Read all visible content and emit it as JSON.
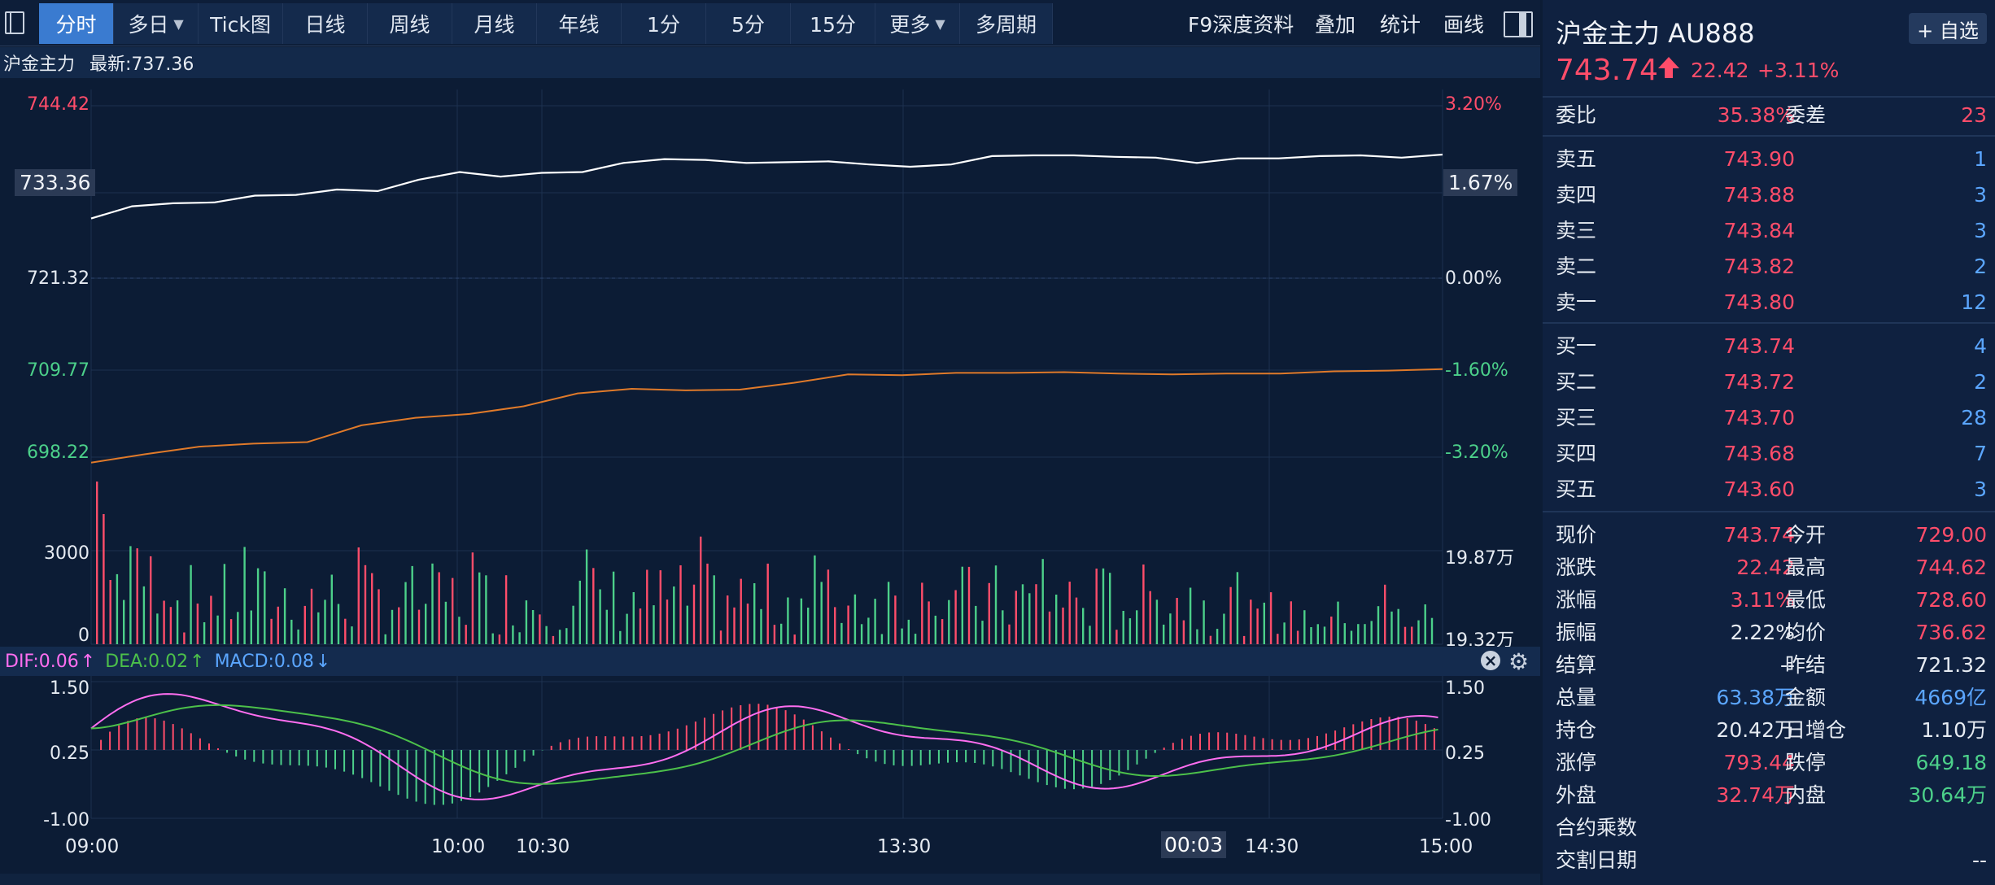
{
  "toolbar": {
    "tabs": [
      {
        "label": "分时",
        "active": true
      },
      {
        "label": "多日",
        "dropdown": true
      },
      {
        "label": "Tick图"
      },
      {
        "label": "日线"
      },
      {
        "label": "周线"
      },
      {
        "label": "月线"
      },
      {
        "label": "年线"
      },
      {
        "label": "1分"
      },
      {
        "label": "5分"
      },
      {
        "label": "15分"
      },
      {
        "label": "更多",
        "dropdown": true
      },
      {
        "label": "多周期"
      }
    ],
    "right": [
      "F9深度资料",
      "叠加",
      "统计",
      "画线"
    ],
    "dropdown_glyph": "▼"
  },
  "info": {
    "name": "沪金主力",
    "latest": "最新:737.36"
  },
  "chart": {
    "left_labels": [
      "744.42",
      "733.36",
      "721.32",
      "709.77",
      "698.22"
    ],
    "right_labels": [
      "3.20%",
      "1.67%",
      "0.00%",
      "-1.60%",
      "-3.20%"
    ],
    "vol_left": [
      "3000",
      "0"
    ],
    "vol_right": [
      "19.87万",
      "19.32万"
    ],
    "macd_left": [
      "1.50",
      "0.25",
      "-1.00"
    ],
    "macd_right": [
      "1.50",
      "0.25",
      "-1.00"
    ],
    "macd_legend": {
      "dif": "DIF:0.06",
      "dif_arrow": "↑",
      "dea": "DEA:0.02",
      "dea_arrow": "↑",
      "macd": "MACD:0.08",
      "macd_arrow": "↓"
    },
    "time_labels": [
      "09:00",
      "10:00",
      "10:30",
      "13:30",
      "14:30",
      "15:00"
    ],
    "cursor_time": "00:03",
    "colors": {
      "up": "#ff4d6a",
      "down": "#4cd08a",
      "price": "#ffffff",
      "avg": "#e07a2a",
      "dif": "#ff6ef0",
      "dea": "#4cc04a",
      "bg": "#0c1c35"
    }
  },
  "chart_data": {
    "type": "line",
    "title": "",
    "xlabel": "",
    "ylabel": "",
    "x_ticks": [
      "09:00",
      "10:00",
      "10:30",
      "13:30",
      "14:30",
      "15:00"
    ],
    "ylim": [
      698.22,
      744.42
    ],
    "series": [
      {
        "values": [
          729.6,
          731.2,
          731.6,
          731.7,
          732.6,
          732.7,
          733.4,
          733.2,
          734.7,
          735.7,
          735.1,
          735.6,
          735.7,
          736.9,
          737.4,
          737.3,
          736.9,
          737.0,
          737.1,
          736.7,
          736.4,
          736.7,
          737.8,
          737.9,
          737.9,
          737.7,
          737.6,
          736.9,
          737.5,
          737.5,
          737.8,
          737.9,
          737.6,
          738.0
        ]
      },
      {
        "values": [
          697.5,
          698.6,
          699.6,
          700.0,
          700.2,
          702.4,
          703.4,
          703.9,
          704.9,
          706.6,
          707.2,
          707.0,
          707.1,
          708.0,
          709.1,
          709.0,
          709.3,
          709.3,
          709.4,
          709.2,
          709.1,
          709.2,
          709.2,
          709.5,
          709.6,
          709.8
        ]
      }
    ]
  },
  "quote": {
    "title": "沪金主力  AU888",
    "add_label": "+ 自选",
    "price": "743.74",
    "change": "22.42",
    "change_pct": "+3.11%",
    "weibi": {
      "label": "委比",
      "value": "35.38%",
      "label2": "委差",
      "value2": "23"
    },
    "asks": [
      {
        "label": "卖五",
        "price": "743.90",
        "vol": "1"
      },
      {
        "label": "卖四",
        "price": "743.88",
        "vol": "3"
      },
      {
        "label": "卖三",
        "price": "743.84",
        "vol": "3"
      },
      {
        "label": "卖二",
        "price": "743.82",
        "vol": "2"
      },
      {
        "label": "卖一",
        "price": "743.80",
        "vol": "12"
      }
    ],
    "bids": [
      {
        "label": "买一",
        "price": "743.74",
        "vol": "4"
      },
      {
        "label": "买二",
        "price": "743.72",
        "vol": "2"
      },
      {
        "label": "买三",
        "price": "743.70",
        "vol": "28"
      },
      {
        "label": "买四",
        "price": "743.68",
        "vol": "7"
      },
      {
        "label": "买五",
        "price": "743.60",
        "vol": "3"
      }
    ],
    "stats": [
      {
        "l1": "现价",
        "v1": "743.74",
        "c1": "red",
        "l2": "今开",
        "v2": "729.00",
        "c2": "red"
      },
      {
        "l1": "涨跌",
        "v1": "22.42",
        "c1": "red",
        "l2": "最高",
        "v2": "744.62",
        "c2": "red"
      },
      {
        "l1": "涨幅",
        "v1": "3.11%",
        "c1": "red",
        "l2": "最低",
        "v2": "728.60",
        "c2": "red"
      },
      {
        "l1": "振幅",
        "v1": "2.22%",
        "c1": "white",
        "l2": "均价",
        "v2": "736.62",
        "c2": "red"
      },
      {
        "l1": "结算",
        "v1": "--",
        "c1": "white",
        "l2": "昨结",
        "v2": "721.32",
        "c2": "white"
      },
      {
        "l1": "总量",
        "v1": "63.38万",
        "c1": "blue",
        "l2": "金额",
        "v2": "4669亿",
        "c2": "blue"
      },
      {
        "l1": "持仓",
        "v1": "20.42万",
        "c1": "white",
        "l2": "日增仓",
        "v2": "1.10万",
        "c2": "white"
      },
      {
        "l1": "涨停",
        "v1": "793.44",
        "c1": "red",
        "l2": "跌停",
        "v2": "649.18",
        "c2": "green"
      },
      {
        "l1": "外盘",
        "v1": "32.74万",
        "c1": "red",
        "l2": "内盘",
        "v2": "30.64万",
        "c2": "green"
      },
      {
        "l1": "合约乘数",
        "v1": "",
        "c1": "white",
        "l2": "",
        "v2": "",
        "c2": "white"
      },
      {
        "l1": "交割日期",
        "v1": "",
        "c1": "white",
        "l2": "",
        "v2": "--",
        "c2": "white"
      }
    ]
  }
}
